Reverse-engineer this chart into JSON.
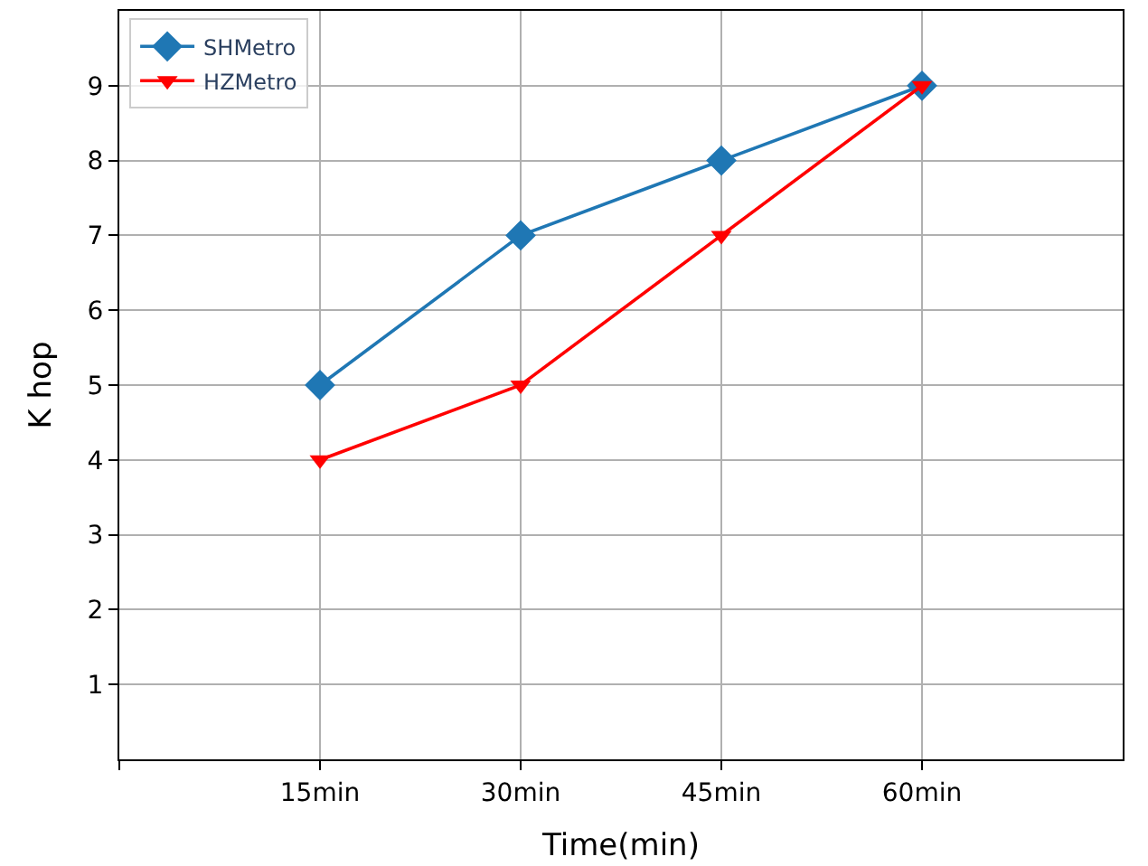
{
  "chart_data": {
    "type": "line",
    "xlabel": "Time(min)",
    "ylabel": "K hop",
    "x": [
      15,
      30,
      45,
      60
    ],
    "series": [
      {
        "name": "SHMetro",
        "color": "#1f77b4",
        "values": [
          5,
          7,
          8,
          9
        ],
        "marker": "diamond"
      },
      {
        "name": "HZMetro",
        "color": "#ff0000",
        "values": [
          4,
          5,
          7,
          9
        ],
        "marker": "triangle"
      }
    ],
    "xlim": [
      0,
      75
    ],
    "xticks": [
      {
        "value": 0,
        "label": null
      },
      {
        "value": 15,
        "label": "15min"
      },
      {
        "value": 30,
        "label": "30min"
      },
      {
        "value": 45,
        "label": "45min"
      },
      {
        "value": 60,
        "label": "60min"
      }
    ],
    "ylim": [
      0,
      10
    ],
    "yticks": [
      1,
      2,
      3,
      4,
      5,
      6,
      7,
      8,
      9
    ],
    "grid": true,
    "legend": "top left",
    "line_style": "solid"
  }
}
